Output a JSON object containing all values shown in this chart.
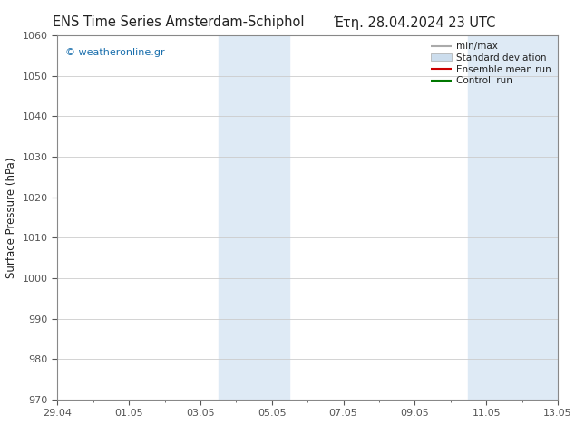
{
  "title_left": "ENS Time Series Amsterdam-Schiphol",
  "title_right": "Έτη. 28.04.2024 23 UTC",
  "ylabel": "Surface Pressure (hPa)",
  "ylim": [
    970,
    1060
  ],
  "yticks": [
    970,
    980,
    990,
    1000,
    1010,
    1020,
    1030,
    1040,
    1050,
    1060
  ],
  "xtick_labels": [
    "29.04",
    "01.05",
    "03.05",
    "05.05",
    "07.05",
    "09.05",
    "11.05",
    "13.05"
  ],
  "xtick_positions": [
    0,
    2,
    4,
    6,
    8,
    10,
    12,
    14
  ],
  "minor_xtick_positions": [
    1,
    3,
    5,
    7,
    9,
    11,
    13
  ],
  "shaded_regions": [
    {
      "start": 4.5,
      "end": 6.5
    },
    {
      "start": 11.5,
      "end": 14.0
    }
  ],
  "shaded_color": "#deeaf5",
  "watermark_text": "© weatheronline.gr",
  "watermark_color": "#1a6fad",
  "legend_entries": [
    {
      "label": "min/max",
      "color": "#aaaaaa",
      "lw": 1.5,
      "type": "line"
    },
    {
      "label": "Standard deviation",
      "color": "#ccdded",
      "lw": 6,
      "type": "patch"
    },
    {
      "label": "Ensemble mean run",
      "color": "#cc0000",
      "lw": 1.5,
      "type": "line"
    },
    {
      "label": "Controll run",
      "color": "#007700",
      "lw": 1.5,
      "type": "line"
    }
  ],
  "bg_color": "#ffffff",
  "spine_color": "#888888",
  "tick_color": "#555555",
  "grid_color": "#cccccc",
  "font_color": "#222222",
  "title_fontsize": 10.5,
  "axis_label_fontsize": 8.5,
  "tick_fontsize": 8,
  "legend_fontsize": 7.5
}
